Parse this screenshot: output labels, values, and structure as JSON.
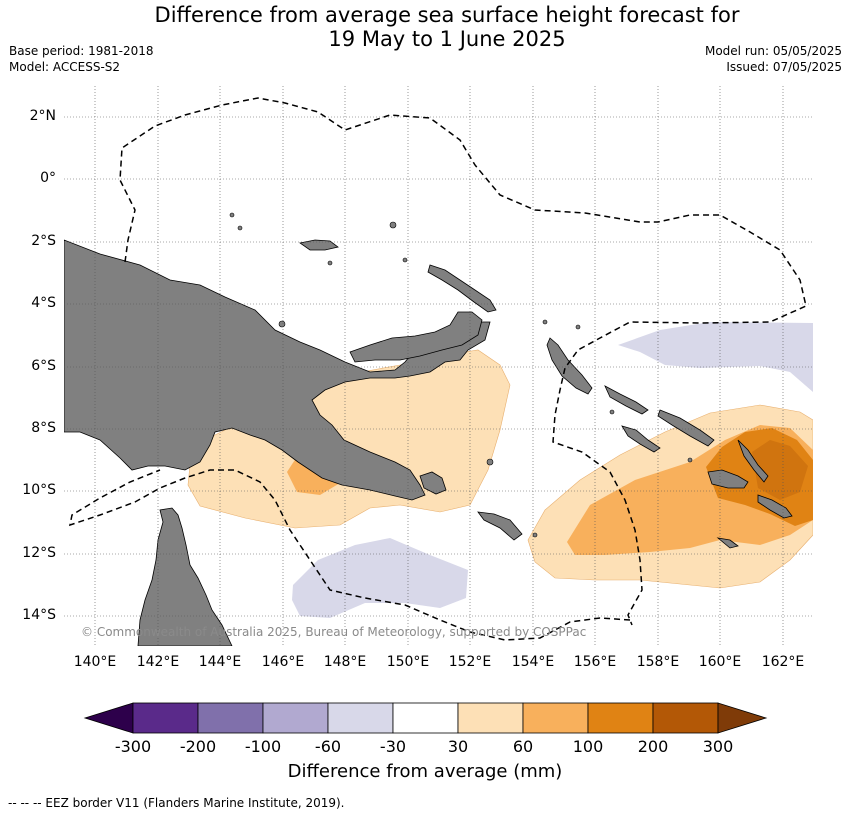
{
  "title": {
    "line1": "Difference from average sea surface height forecast for",
    "line2": "19 May to 1 June 2025"
  },
  "meta": {
    "base_period": "Base period: 1981-2018",
    "model": "Model: ACCESS-S2",
    "model_run": "Model run: 05/05/2025",
    "issued": "Issued: 07/05/2025"
  },
  "map": {
    "lat_labels": [
      "2°N",
      "0°",
      "2°S",
      "4°S",
      "6°S",
      "8°S",
      "10°S",
      "12°S",
      "14°S"
    ],
    "lon_labels": [
      "140°E",
      "142°E",
      "144°E",
      "146°E",
      "148°E",
      "150°E",
      "152°E",
      "154°E",
      "156°E",
      "158°E",
      "160°E",
      "162°E"
    ],
    "copyright": "© Commonwealth of Australia 2025, Bureau of Meteorology, supported by COSPPac"
  },
  "colorbar": {
    "ticks": [
      "-300",
      "-200",
      "-100",
      "-60",
      "-30",
      "30",
      "60",
      "100",
      "200",
      "300"
    ],
    "colors": [
      "#5a2a8a",
      "#8070ab",
      "#b1a9d0",
      "#d8d8e9",
      "#ffffff",
      "#fde0b6",
      "#f8b05c",
      "#e08314",
      "#b35806"
    ],
    "under_color": "#2d004b",
    "over_color": "#7f3b08",
    "label": "Difference from average (mm)"
  },
  "colors": {
    "land": "#808080",
    "light_purple": "#d8d8e9",
    "light_orange": "#fde0b6",
    "mid_orange": "#f8b05c",
    "dark_orange": "#e08314"
  },
  "footnote": "--  --  -- EEZ border V11 (Flanders Marine Institute, 2019)."
}
